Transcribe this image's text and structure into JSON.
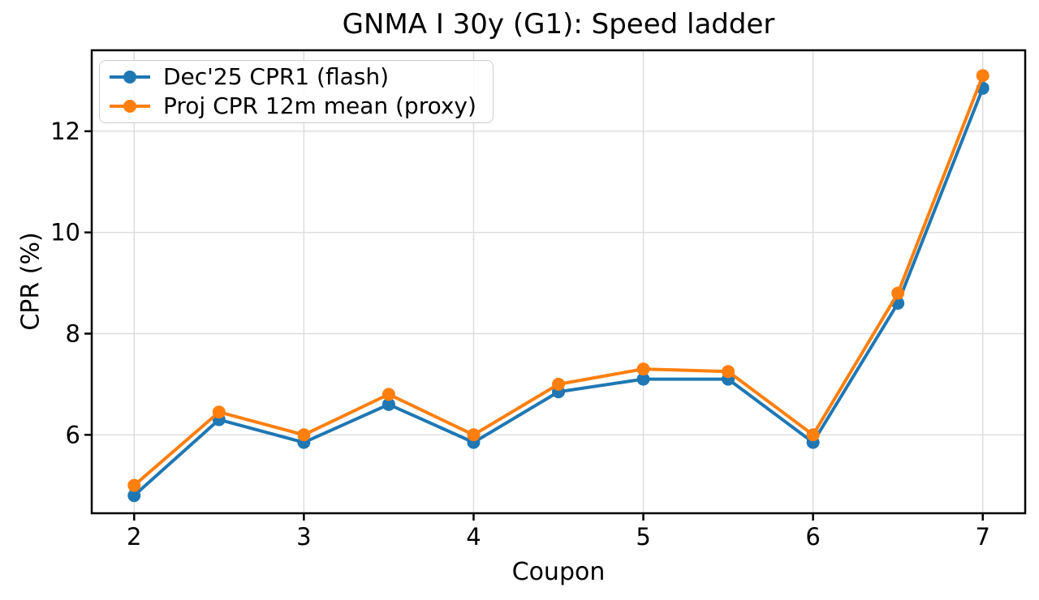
{
  "chart_data": {
    "type": "line",
    "title": "GNMA I 30y (G1): Speed ladder",
    "xlabel": "Coupon",
    "ylabel": "CPR (%)",
    "x": [
      2,
      2.5,
      3,
      3.5,
      4,
      4.5,
      5,
      5.5,
      6,
      6.5,
      7
    ],
    "series": [
      {
        "name": "Dec'25 CPR1 (flash)",
        "color": "#1f77b4",
        "values": [
          4.8,
          6.3,
          5.85,
          6.6,
          5.85,
          6.85,
          7.1,
          7.1,
          5.85,
          8.6,
          12.85
        ]
      },
      {
        "name": "Proj CPR 12m mean (proxy)",
        "color": "#ff7f0e",
        "values": [
          5.0,
          6.45,
          6.0,
          6.8,
          6.0,
          7.0,
          7.3,
          7.25,
          6.0,
          8.8,
          13.1
        ]
      }
    ],
    "xlim": [
      1.75,
      7.25
    ],
    "ylim": [
      4.45,
      13.6
    ],
    "x_ticks": [
      2,
      3,
      4,
      5,
      6,
      7
    ],
    "y_ticks": [
      6,
      8,
      10,
      12
    ],
    "grid": true,
    "legend_position": "upper left",
    "colors": {
      "grid": "#dcdcdc",
      "spine": "#000000",
      "text": "#000000",
      "background": "#ffffff",
      "legend_border": "#cccccc"
    }
  }
}
